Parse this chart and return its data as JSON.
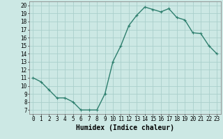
{
  "x": [
    0,
    1,
    2,
    3,
    4,
    5,
    6,
    7,
    8,
    9,
    10,
    11,
    12,
    13,
    14,
    15,
    16,
    17,
    18,
    19,
    20,
    21,
    22,
    23
  ],
  "y": [
    11.0,
    10.5,
    9.5,
    8.5,
    8.5,
    8.0,
    7.0,
    7.0,
    7.0,
    9.0,
    13.0,
    15.0,
    17.5,
    18.8,
    19.8,
    19.5,
    19.2,
    19.6,
    18.5,
    18.2,
    16.6,
    16.5,
    15.0,
    14.0
  ],
  "line_color": "#2e7f6e",
  "marker": "+",
  "marker_size": 3,
  "bg_color": "#cce8e4",
  "grid_color": "#aacfcb",
  "xlabel": "Humidex (Indice chaleur)",
  "xlim": [
    -0.5,
    23.5
  ],
  "ylim": [
    6.5,
    20.5
  ],
  "yticks": [
    7,
    8,
    9,
    10,
    11,
    12,
    13,
    14,
    15,
    16,
    17,
    18,
    19,
    20
  ],
  "xticks": [
    0,
    1,
    2,
    3,
    4,
    5,
    6,
    7,
    8,
    9,
    10,
    11,
    12,
    13,
    14,
    15,
    16,
    17,
    18,
    19,
    20,
    21,
    22,
    23
  ],
  "tick_fontsize": 5.5,
  "xlabel_fontsize": 7,
  "line_width": 1.0,
  "spine_color": "#888888"
}
